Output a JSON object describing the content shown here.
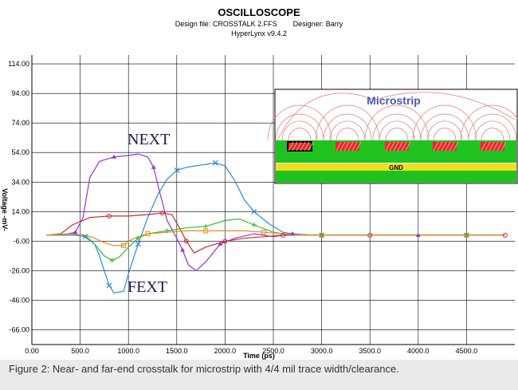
{
  "header": {
    "title": "OSCILLOSCOPE",
    "design_line": "Design file: CROSSTALK 2.FFS        Designer: Barry",
    "version": "HyperLynx v9.4.2"
  },
  "caption": "Figure 2: Near- and far-end crosstalk for microstrip with 4/4 mil trace width/clearance.",
  "annotations": {
    "next": "NEXT",
    "fext": "FEXT"
  },
  "inset": {
    "title": "Microstrip",
    "ground_label": "GND"
  },
  "chart_data": {
    "type": "line",
    "title": "OSCILLOSCOPE",
    "xlabel": "Time (ps)",
    "ylabel": "Voltage -mV-",
    "xlim": [
      0,
      5000
    ],
    "ylim": [
      -76,
      120
    ],
    "grid": true,
    "x_ticks": [
      0,
      500,
      1000,
      1500,
      2000,
      2500,
      3000,
      3500,
      4000,
      4500
    ],
    "x_tick_labels": [
      "0.00",
      "500.0",
      "1000.0",
      "1500.0",
      "2000.0",
      "2500.0",
      "3000.0",
      "3500.0",
      "4000.0",
      "4500.0"
    ],
    "y_ticks": [
      114,
      94,
      74,
      54,
      34,
      14,
      -6,
      -26,
      -46,
      -66
    ],
    "y_tick_labels": [
      "114.00",
      "94.00",
      "74.00",
      "54.00",
      "34.00",
      "14.00",
      "-6.00",
      "-26.00",
      "-46.00",
      "-66.00"
    ],
    "series": [
      {
        "color": "#9b30d8",
        "marker": "triangle",
        "x": [
          150,
          300,
          450,
          530,
          600,
          700,
          850,
          1000,
          1100,
          1200,
          1260,
          1320,
          1400,
          1500,
          1560,
          1620,
          1700,
          1800,
          1950,
          2100,
          2300,
          2500,
          2700,
          2900,
          3100,
          3500,
          4000,
          4500,
          4900
        ],
        "y": [
          -2,
          -2,
          0,
          10,
          37,
          48,
          51,
          52,
          53,
          51,
          44,
          28,
          8,
          -4,
          -12,
          -22,
          -26,
          -20,
          -8,
          -4,
          -1,
          -3,
          -1,
          -2,
          -2,
          -2,
          -2,
          -2,
          -2
        ]
      },
      {
        "color": "#2b8ad8",
        "marker": "x",
        "x": [
          150,
          300,
          450,
          550,
          650,
          700,
          750,
          800,
          850,
          950,
          1000,
          1100,
          1200,
          1300,
          1400,
          1500,
          1600,
          1700,
          1800,
          1900,
          2000,
          2100,
          2200,
          2300,
          2450,
          2600,
          2800,
          3000,
          3200,
          3500,
          4000,
          4500,
          4900
        ],
        "y": [
          -2,
          -2,
          -2,
          -3,
          -8,
          -16,
          -26,
          -36,
          -41,
          -40,
          -28,
          -8,
          10,
          25,
          36,
          42,
          44,
          45,
          46,
          47,
          45,
          35,
          22,
          14,
          6,
          0,
          -2,
          -2,
          -2,
          -2,
          -2,
          -2,
          -2
        ]
      },
      {
        "color": "#cc2a2a",
        "marker": "circle",
        "x": [
          150,
          300,
          420,
          600,
          800,
          1000,
          1200,
          1350,
          1450,
          1520,
          1600,
          1680,
          1800,
          2000,
          2200,
          2400,
          2600,
          2800,
          3000,
          3500,
          4000,
          4500,
          4900
        ],
        "y": [
          -2,
          -1,
          5,
          10,
          11,
          11,
          12,
          13,
          12,
          4,
          -6,
          -14,
          -10,
          -6,
          -4,
          -3,
          -2,
          -2,
          -2,
          -2,
          -2,
          -2,
          -2
        ]
      },
      {
        "color": "#30c030",
        "marker": "plus",
        "x": [
          150,
          400,
          550,
          650,
          750,
          830,
          900,
          1000,
          1100,
          1200,
          1300,
          1400,
          1500,
          1600,
          1800,
          2000,
          2150,
          2300,
          2500,
          2700,
          3000,
          3500,
          4000,
          4500,
          4900
        ],
        "y": [
          -2,
          -1,
          -2,
          -8,
          -16,
          -19,
          -17,
          -10,
          -4,
          -1,
          0,
          1,
          2,
          3,
          4,
          8,
          9,
          5,
          0,
          -2,
          -2,
          -2,
          -2,
          -2,
          -2
        ]
      },
      {
        "color": "#e88a1a",
        "marker": "square",
        "x": [
          150,
          400,
          550,
          650,
          750,
          850,
          950,
          1000,
          1100,
          1200,
          1400,
          1600,
          1800,
          2000,
          2200,
          2400,
          2600,
          2800,
          3000,
          3500,
          4000,
          4500,
          4900
        ],
        "y": [
          -2,
          -1,
          -2,
          -4,
          -7,
          -9,
          -9,
          -6,
          -3,
          -1,
          0,
          1,
          1,
          1,
          1,
          0,
          -1,
          -2,
          -2,
          -2,
          -2,
          -2,
          -2
        ]
      }
    ]
  }
}
